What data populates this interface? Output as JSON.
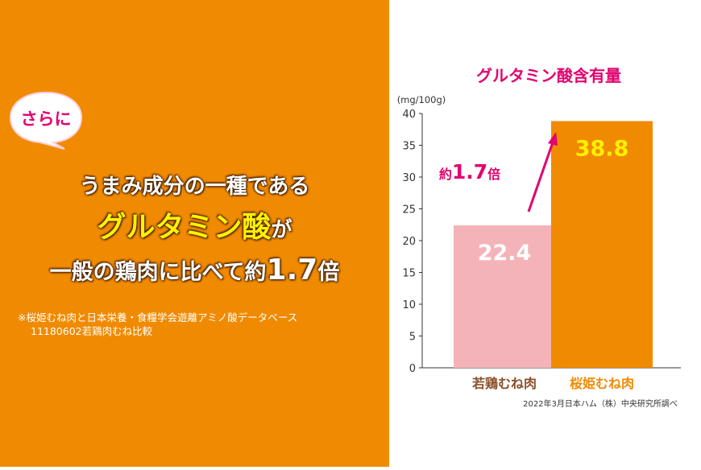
{
  "left_panel": {
    "bubble": "さらに",
    "line1": "うまみ成分の一種である",
    "line2_main": "グルタミン酸",
    "line2_suffix": "が",
    "line3_prefix": "一般の鶏肉に比べて約",
    "line3_number": "1.7",
    "line3_suffix": "倍",
    "note_line1": "※桜姫むね肉と日本栄養・食糧学会遊離アミノ酸データベース",
    "note_line2": "11180602若鶏肉むね比較"
  },
  "chart_data": {
    "type": "bar",
    "title": "グルタミン酸含有量",
    "ylabel": "(mg/100g)",
    "categories": [
      "若鶏むね肉",
      "桜姫むね肉"
    ],
    "values": [
      22.4,
      38.8
    ],
    "value_labels": [
      "22.4",
      "38.8"
    ],
    "yticks": [
      0,
      5,
      10,
      15,
      20,
      25,
      30,
      35,
      40
    ],
    "ylim": [
      0,
      40
    ],
    "colors": [
      "#f4b3b8",
      "#f08a00"
    ],
    "label_colors": [
      "#ffffff",
      "#fff100"
    ],
    "category_label_colors": [
      "#8a4f2a",
      "#f08a00"
    ],
    "grid": false,
    "annotation": {
      "prefix": "約",
      "number": "1.7",
      "suffix": "倍"
    },
    "source": "2022年3月日本ハム（株）中央研究所調べ"
  }
}
